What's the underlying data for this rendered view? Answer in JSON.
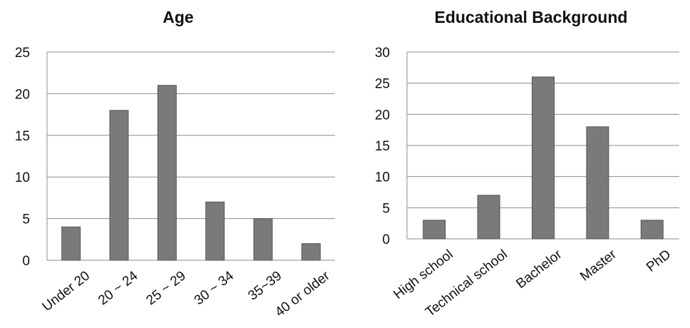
{
  "chart_data": [
    {
      "type": "bar",
      "title": "Age",
      "categories": [
        "Under 20",
        "20 ~ 24",
        "25 ~ 29",
        "30 ~ 34",
        "35~39",
        "40 or older"
      ],
      "values": [
        4,
        18,
        21,
        7,
        5,
        2
      ],
      "yticks": [
        "0",
        "5",
        "10",
        "15",
        "20",
        "25"
      ],
      "ylim": [
        0,
        25
      ],
      "xlabel": "",
      "ylabel": "",
      "grid": true,
      "legend": "none",
      "bar_color": "#7a7a7a"
    },
    {
      "type": "bar",
      "title": "Educational Background",
      "categories": [
        "High school",
        "Technical school",
        "Bachelor",
        "Master",
        "PhD"
      ],
      "values": [
        3,
        7,
        26,
        18,
        3
      ],
      "yticks": [
        "0",
        "5",
        "10",
        "15",
        "20",
        "25",
        "30"
      ],
      "ylim": [
        0,
        30
      ],
      "xlabel": "",
      "ylabel": "",
      "grid": true,
      "legend": "none",
      "bar_color": "#7a7a7a"
    }
  ]
}
